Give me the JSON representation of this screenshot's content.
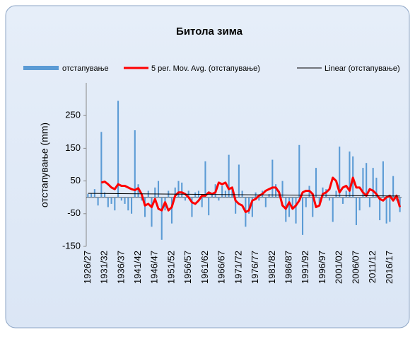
{
  "chart_data": {
    "type": "bar",
    "title": "Битола зима",
    "y_label": "отстапување (mm)",
    "categories": [
      "1926/27",
      null,
      null,
      null,
      null,
      "1931/32",
      null,
      null,
      null,
      null,
      "1936/37",
      null,
      null,
      null,
      null,
      "1941/42",
      null,
      null,
      null,
      null,
      "1946/47",
      null,
      null,
      null,
      null,
      "1951/52",
      null,
      null,
      null,
      null,
      "1956/57",
      null,
      null,
      null,
      null,
      "1961/62",
      null,
      null,
      null,
      null,
      "1966/67",
      null,
      null,
      null,
      null,
      "1971/72",
      null,
      null,
      null,
      null,
      "1976/77",
      null,
      null,
      null,
      null,
      "1981/82",
      null,
      null,
      null,
      null,
      "1986/87",
      null,
      null,
      null,
      null,
      "1991/92",
      null,
      null,
      null,
      null,
      "1996/97",
      null,
      null,
      null,
      null,
      "2001/02",
      null,
      null,
      null,
      null,
      "2006/07",
      null,
      null,
      null,
      null,
      "2011/12",
      null,
      null,
      null,
      null,
      "2016/17",
      null,
      null,
      null
    ],
    "series": [
      {
        "name": "отстапување",
        "kind": "bar",
        "color": "#5b9bd5",
        "values": [
          10,
          12,
          25,
          -25,
          200,
          15,
          -30,
          -20,
          -40,
          295,
          -10,
          -20,
          -40,
          -50,
          205,
          40,
          -10,
          -60,
          20,
          -90,
          30,
          50,
          -130,
          -40,
          20,
          -80,
          30,
          50,
          45,
          -10,
          20,
          -60,
          15,
          20,
          -30,
          110,
          -55,
          10,
          40,
          -10,
          35,
          20,
          130,
          30,
          -50,
          100,
          20,
          -90,
          -50,
          -60,
          15,
          -10,
          20,
          -30,
          10,
          115,
          40,
          20,
          50,
          -75,
          -60,
          -30,
          -80,
          160,
          -115,
          -30,
          35,
          -60,
          90,
          -20,
          30,
          25,
          -10,
          -75,
          20,
          155,
          -20,
          20,
          140,
          125,
          -85,
          -40,
          90,
          105,
          -30,
          90,
          60,
          -70,
          110,
          -80,
          -75,
          65,
          -10,
          -45
        ]
      },
      {
        "name": "5 per. Mov. Avg. (отстапување)",
        "kind": "line",
        "color": "#ff0000",
        "values": [
          null,
          null,
          null,
          null,
          45,
          48,
          40,
          30,
          25,
          40,
          35,
          35,
          30,
          25,
          22,
          28,
          10,
          -25,
          -20,
          -30,
          -5,
          -35,
          -40,
          -15,
          -40,
          -30,
          5,
          15,
          15,
          10,
          0,
          -15,
          -20,
          -10,
          5,
          5,
          15,
          10,
          15,
          45,
          40,
          45,
          25,
          30,
          -10,
          -20,
          -25,
          -45,
          -40,
          -10,
          -5,
          5,
          10,
          20,
          25,
          30,
          30,
          15,
          -25,
          -35,
          -15,
          -35,
          -25,
          -10,
          15,
          20,
          20,
          10,
          -30,
          -25,
          10,
          15,
          25,
          60,
          50,
          15,
          30,
          35,
          20,
          60,
          30,
          30,
          15,
          5,
          25,
          20,
          10,
          -5,
          -10,
          0,
          5,
          -10,
          5,
          -30
        ]
      },
      {
        "name": "Linear (отстапување)",
        "kind": "trend",
        "color": "#000000",
        "ends": [
          12,
          4
        ]
      }
    ],
    "ylim": [
      -150,
      350
    ],
    "yticks": [
      -150,
      -50,
      50,
      150,
      250
    ]
  }
}
